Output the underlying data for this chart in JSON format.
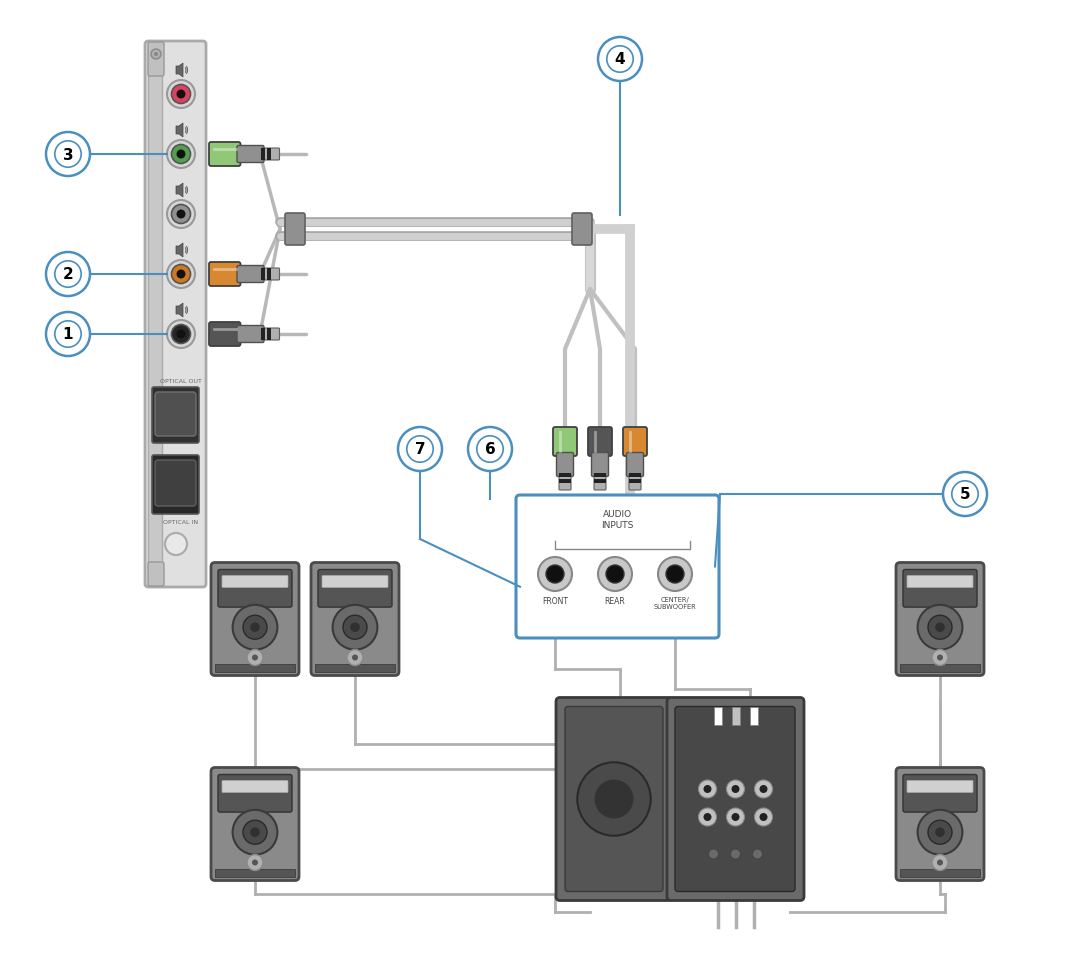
{
  "bg_color": "#ffffff",
  "label_circle_color": "#4a8fc0",
  "label_text_color": "#000000",
  "green_plug": "#90c878",
  "orange_plug": "#d88830",
  "black_plug": "#555555",
  "pink_port": "#e04060",
  "green_port": "#50a050",
  "orange_port": "#d07820",
  "gray_port": "#888888",
  "black_port": "#252525",
  "wire_color": "#b8b8b8",
  "label_numbers": [
    "1",
    "2",
    "3",
    "4",
    "5",
    "6",
    "7"
  ],
  "audio_inputs_label": "AUDIO\nINPUTS",
  "front_label": "FRONT",
  "rear_label": "REAR",
  "center_label": "CENTER/\nSUBWOOFER"
}
